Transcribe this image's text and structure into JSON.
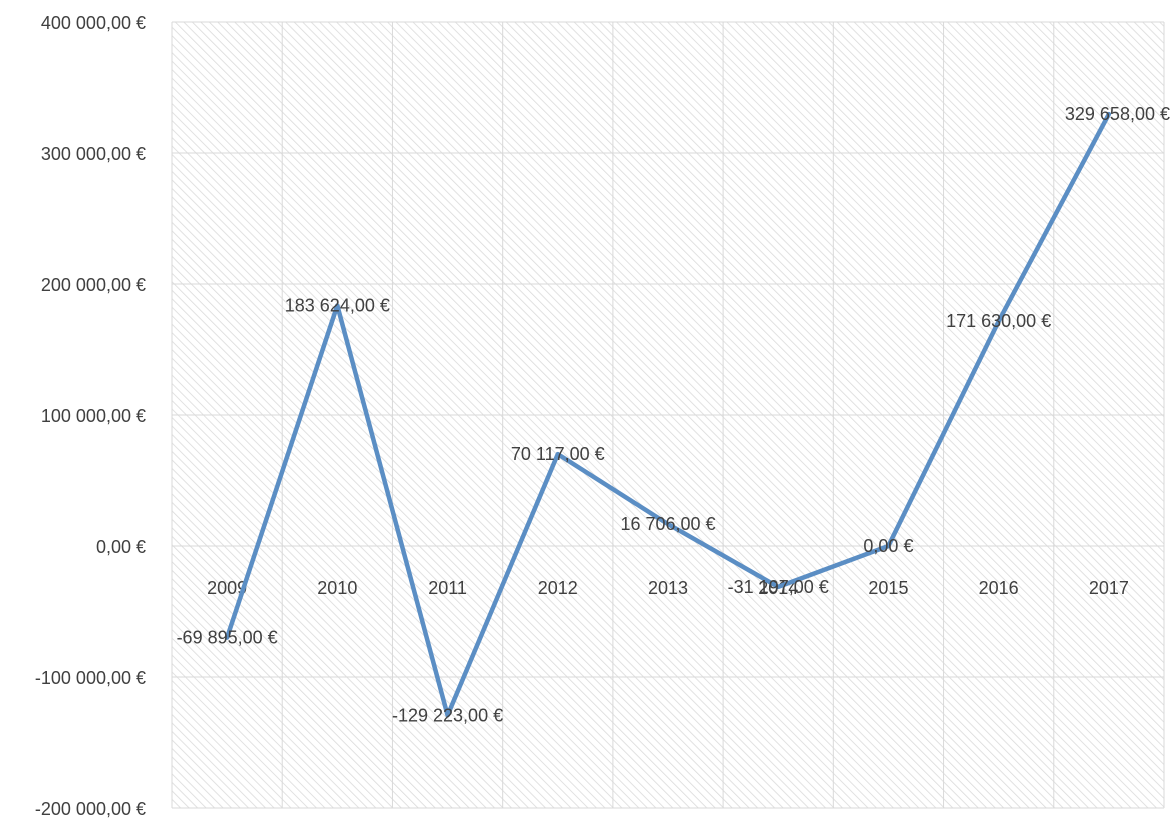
{
  "chart_data": {
    "type": "line",
    "title": "",
    "xlabel": "",
    "ylabel": "",
    "categories": [
      "2009",
      "2010",
      "2011",
      "2012",
      "2013",
      "2014",
      "2015",
      "2016",
      "2017"
    ],
    "series": [
      {
        "values": [
          -69895,
          183624,
          -129223,
          70117,
          16706,
          -31197,
          0,
          171630,
          329658
        ],
        "data_labels": [
          "-69 895,00 €",
          "183 624,00 €",
          "-129 223,00 €",
          "70 117,00 €",
          "16 706,00 €",
          "-31 197,00 €",
          "0,00 €",
          "171 630,00 €",
          "329 658,00 €"
        ],
        "color": "#5b8ec4"
      }
    ],
    "ylim": [
      -200000,
      400000
    ],
    "y_ticks": [
      -200000,
      -100000,
      0,
      100000,
      200000,
      300000,
      400000
    ],
    "y_tick_labels": [
      "-200 000,00 €",
      "-100 000,00 €",
      "0,00 €",
      "100 000,00 €",
      "200 000,00 €",
      "300 000,00 €",
      "400 000,00 €"
    ],
    "grid": true,
    "legend": "none",
    "colors": {
      "line": "#5b8ec4",
      "grid": "#d9d9d9",
      "hatch": "#d9d9d9",
      "text": "#404040"
    }
  }
}
